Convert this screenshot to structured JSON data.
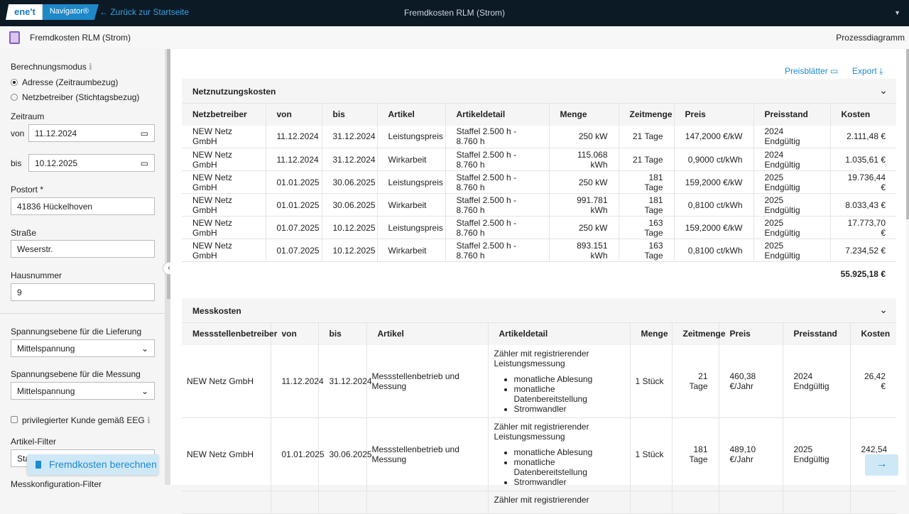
{
  "header": {
    "logo_left": "ene't",
    "logo_right": "Navigator®",
    "back": "Zurück zur Startseite",
    "title": "Fremdkosten RLM (Strom)"
  },
  "subheader": {
    "title": "Fremdkosten RLM (Strom)",
    "right": "Prozessdiagramm"
  },
  "sidebar": {
    "mode_label": "Berechnungsmodus",
    "mode_opt1": "Adresse (Zeitraumbezug)",
    "mode_opt2": "Netzbetreiber (Stichtagsbezug)",
    "zeitraum": "Zeitraum",
    "von": "von",
    "von_val": "11.12.2024",
    "bis": "bis",
    "bis_val": "10.12.2025",
    "postort_label": "Postort *",
    "postort": "41836 Hückelhoven",
    "strasse_label": "Straße",
    "strasse": "Weserstr.",
    "haus_label": "Hausnummer",
    "haus": "9",
    "span_lief_label": "Spannungsebene für die Lieferung",
    "span_lief": "Mittelspannung",
    "span_mess_label": "Spannungsebene für die Messung",
    "span_mess": "Mittelspannung",
    "priv": "privilegierter Kunde gemäß EEG",
    "artikel_filter": "Artikel-Filter",
    "artikel_val": "Sta",
    "mess_filter": "Messkonfiguration-Filter",
    "calc_button": "Fremdkosten berechnen"
  },
  "main": {
    "preisblaetter": "Preisblätter",
    "export": "Export",
    "netz": {
      "title": "Netznutzungskosten",
      "headers": [
        "Netzbetreiber",
        "von",
        "bis",
        "Artikel",
        "Artikeldetail",
        "Menge",
        "Zeitmenge",
        "Preis",
        "Preisstand",
        "Kosten"
      ],
      "rows": [
        [
          "NEW Netz GmbH",
          "11.12.2024",
          "31.12.2024",
          "Leistungspreis",
          "Staffel 2.500 h - 8.760 h",
          "250 kW",
          "21 Tage",
          "147,2000 €/kW",
          "2024 Endgültig",
          "2.111,48 €"
        ],
        [
          "NEW Netz GmbH",
          "11.12.2024",
          "31.12.2024",
          "Wirkarbeit",
          "Staffel 2.500 h - 8.760 h",
          "115.068 kWh",
          "21 Tage",
          "0,9000 ct/kWh",
          "2024 Endgültig",
          "1.035,61 €"
        ],
        [
          "NEW Netz GmbH",
          "01.01.2025",
          "30.06.2025",
          "Leistungspreis",
          "Staffel 2.500 h - 8.760 h",
          "250 kW",
          "181 Tage",
          "159,2000 €/kW",
          "2025 Endgültig",
          "19.736,44 €"
        ],
        [
          "NEW Netz GmbH",
          "01.01.2025",
          "30.06.2025",
          "Wirkarbeit",
          "Staffel 2.500 h - 8.760 h",
          "991.781 kWh",
          "181 Tage",
          "0,8100 ct/kWh",
          "2025 Endgültig",
          "8.033,43 €"
        ],
        [
          "NEW Netz GmbH",
          "01.07.2025",
          "10.12.2025",
          "Leistungspreis",
          "Staffel 2.500 h - 8.760 h",
          "250 kW",
          "163 Tage",
          "159,2000 €/kW",
          "2025 Endgültig",
          "17.773,70 €"
        ],
        [
          "NEW Netz GmbH",
          "01.07.2025",
          "10.12.2025",
          "Wirkarbeit",
          "Staffel 2.500 h - 8.760 h",
          "893.151 kWh",
          "163 Tage",
          "0,8100 ct/kWh",
          "2025 Endgültig",
          "7.234,52 €"
        ]
      ],
      "total": "55.925,18 €"
    },
    "mess": {
      "title": "Messkosten",
      "headers": [
        "Messstellenbetreiber",
        "von",
        "bis",
        "Artikel",
        "Artikeldetail",
        "Menge",
        "Zeitmenge",
        "Preis",
        "Preisstand",
        "Kosten"
      ],
      "rows": [
        [
          "NEW Netz GmbH",
          "11.12.2024",
          "31.12.2024",
          "Messstellenbetrieb und Messung",
          "Zähler mit registrierender Leistungsmessung",
          "1 Stück",
          "21 Tage",
          "460,38 €/Jahr",
          "2024 Endgültig",
          "26,42 €"
        ],
        [
          "NEW Netz GmbH",
          "01.01.2025",
          "30.06.2025",
          "Messstellenbetrieb und Messung",
          "Zähler mit registrierender Leistungsmessung",
          "1 Stück",
          "181 Tage",
          "489,10 €/Jahr",
          "2025 Endgültig",
          "242,54 €"
        ],
        [
          "",
          "",
          "",
          "",
          "Zähler mit registrierender",
          "",
          "",
          "",
          "",
          ""
        ]
      ],
      "bullets": [
        "monatliche Ablesung",
        "monatliche Datenbereitstellung",
        "Stromwandler"
      ]
    }
  }
}
